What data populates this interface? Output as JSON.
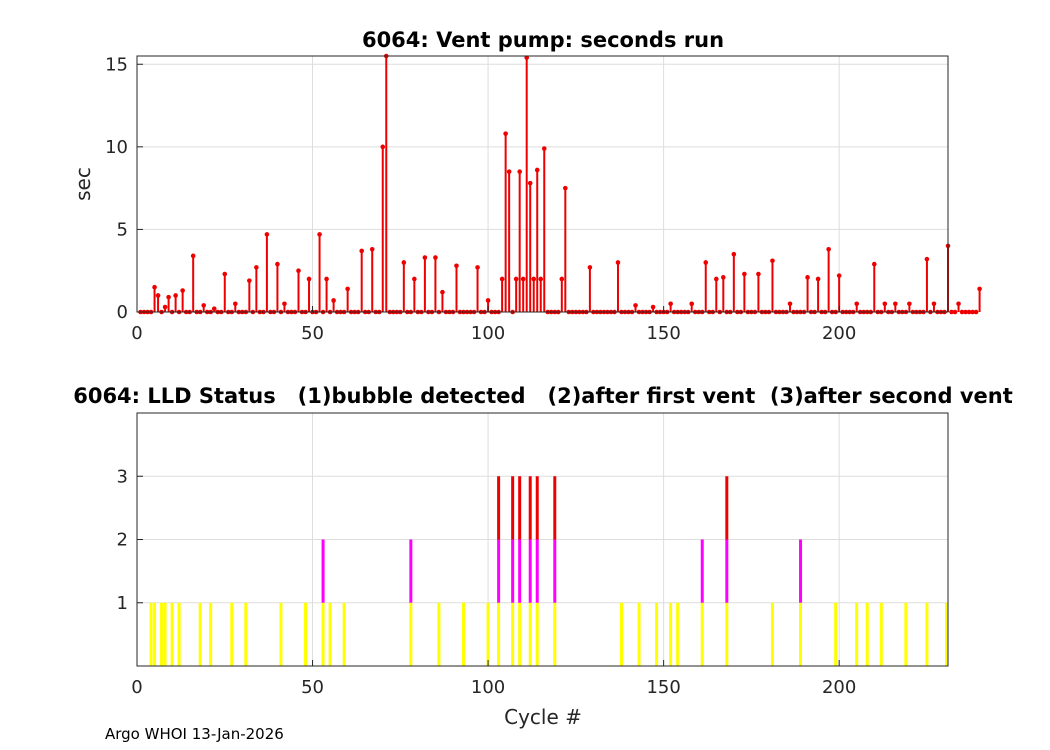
{
  "footer": "Argo WHOI 13-Jan-2026",
  "colors": {
    "red": "#ee0000",
    "magenta": "#ff00ff",
    "yellow": "#ffff00",
    "grid": "#dddddd",
    "axis": "#262626"
  },
  "chart_data": [
    {
      "type": "stem",
      "title": "6064: Vent pump: seconds run",
      "xlabel": "",
      "ylabel": "sec",
      "xlim": [
        0,
        231
      ],
      "ylim": [
        0,
        15.5
      ],
      "xticks": [
        0,
        50,
        100,
        150,
        200
      ],
      "yticks": [
        0,
        5,
        10,
        15
      ],
      "grid": true,
      "series": [
        {
          "color": "#ee0000",
          "values": [
            0,
            0,
            0,
            0,
            1.5,
            1.0,
            0,
            0.3,
            0.9,
            0,
            1.0,
            0,
            1.3,
            0,
            0,
            3.4,
            0,
            0,
            0.4,
            0,
            0,
            0.2,
            0,
            0,
            2.3,
            0,
            0,
            0.5,
            0,
            0,
            0,
            1.9,
            0,
            2.7,
            0,
            0,
            4.7,
            0,
            0,
            2.9,
            0,
            0.5,
            0,
            0,
            0,
            2.5,
            0,
            0,
            2.0,
            0,
            0,
            4.7,
            0,
            2.0,
            0,
            0.7,
            0,
            0,
            0,
            1.4,
            0,
            0,
            0,
            3.7,
            0,
            0,
            3.8,
            0,
            0,
            10.0,
            15.5,
            0,
            0,
            0,
            0,
            3.0,
            0,
            0,
            2.0,
            0,
            0,
            3.3,
            0,
            0,
            3.3,
            0,
            1.2,
            0,
            0,
            0,
            2.8,
            0,
            0,
            0,
            0,
            0,
            2.7,
            0,
            0,
            0.7,
            0,
            0,
            0,
            2.0,
            10.8,
            8.5,
            0,
            2.0,
            8.5,
            2.0,
            15.4,
            7.8,
            2.0,
            8.6,
            2.0,
            9.9,
            0,
            0,
            0,
            0,
            2.0,
            7.5,
            0,
            0,
            0,
            0,
            0,
            0,
            2.7,
            0,
            0,
            0,
            0,
            0,
            0,
            0,
            3.0,
            0,
            0,
            0,
            0,
            0.4,
            0,
            0,
            0,
            0,
            0.3,
            0,
            0,
            0,
            0,
            0.5,
            0,
            0,
            0,
            0,
            0,
            0.5,
            0,
            0,
            0,
            3.0,
            0,
            0,
            2.0,
            0,
            2.1,
            0,
            0,
            3.5,
            0,
            0,
            2.3,
            0,
            0,
            0,
            2.3,
            0,
            0,
            0,
            3.1,
            0,
            0,
            0,
            0,
            0.5,
            0,
            0,
            0,
            0,
            2.1,
            0,
            0,
            2.0,
            0,
            0,
            3.8,
            0,
            0,
            2.2,
            0,
            0,
            0,
            0,
            0.5,
            0,
            0,
            0,
            0,
            2.9,
            0,
            0,
            0.5,
            0,
            0,
            0.5,
            0,
            0,
            0,
            0.5,
            0,
            0,
            0,
            0,
            3.2,
            0,
            0.5,
            0,
            0,
            0,
            4.0,
            0,
            0,
            0.5,
            0,
            0,
            0,
            0,
            0,
            1.4
          ]
        }
      ]
    },
    {
      "type": "stem",
      "title": "6064: LLD Status   (1)bubble detected   (2)after first vent  (3)after second vent",
      "xlabel": "Cycle #",
      "ylabel": "",
      "xlim": [
        0,
        231
      ],
      "ylim": [
        0,
        4
      ],
      "xticks": [
        0,
        50,
        100,
        150,
        200
      ],
      "yticks": [
        1,
        2,
        3
      ],
      "grid": true,
      "level_colors": {
        "1": "#ffff00",
        "2": "#ff00ff",
        "3": "#ee0000"
      },
      "events": [
        {
          "x": 4,
          "level": 1
        },
        {
          "x": 5,
          "level": 1
        },
        {
          "x": 7,
          "level": 1
        },
        {
          "x": 8,
          "level": 1
        },
        {
          "x": 10,
          "level": 1
        },
        {
          "x": 12,
          "level": 1
        },
        {
          "x": 18,
          "level": 1
        },
        {
          "x": 21,
          "level": 1
        },
        {
          "x": 27,
          "level": 1
        },
        {
          "x": 31,
          "level": 1
        },
        {
          "x": 41,
          "level": 1
        },
        {
          "x": 48,
          "level": 1
        },
        {
          "x": 53,
          "level": 2
        },
        {
          "x": 55,
          "level": 1
        },
        {
          "x": 59,
          "level": 1
        },
        {
          "x": 78,
          "level": 2
        },
        {
          "x": 86,
          "level": 1
        },
        {
          "x": 93,
          "level": 1
        },
        {
          "x": 100,
          "level": 1
        },
        {
          "x": 103,
          "level": 3
        },
        {
          "x": 107,
          "level": 3
        },
        {
          "x": 109,
          "level": 3
        },
        {
          "x": 112,
          "level": 3
        },
        {
          "x": 114,
          "level": 3
        },
        {
          "x": 119,
          "level": 3
        },
        {
          "x": 138,
          "level": 1
        },
        {
          "x": 143,
          "level": 1
        },
        {
          "x": 148,
          "level": 1
        },
        {
          "x": 152,
          "level": 1
        },
        {
          "x": 154,
          "level": 1
        },
        {
          "x": 161,
          "level": 2
        },
        {
          "x": 168,
          "level": 3
        },
        {
          "x": 181,
          "level": 1
        },
        {
          "x": 189,
          "level": 2
        },
        {
          "x": 199,
          "level": 1
        },
        {
          "x": 205,
          "level": 1
        },
        {
          "x": 208,
          "level": 1
        },
        {
          "x": 212,
          "level": 1
        },
        {
          "x": 219,
          "level": 1
        },
        {
          "x": 225,
          "level": 1
        },
        {
          "x": 231,
          "level": 1
        }
      ]
    }
  ]
}
